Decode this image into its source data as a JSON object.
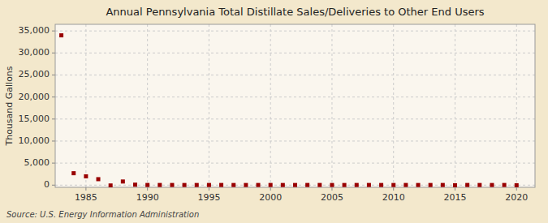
{
  "chart_data": {
    "type": "scatter",
    "title": "Annual Pennsylvania Total Distillate Sales/Deliveries to Other End Users",
    "ylabel": "Thousand Gallons",
    "source": "Source: U.S. Energy Information Administration",
    "color": "#990000",
    "marker": "square",
    "grid": true,
    "x": [
      1983,
      1984,
      1985,
      1986,
      1987,
      1988,
      1989,
      1990,
      1991,
      1992,
      1993,
      1994,
      1995,
      1996,
      1997,
      1998,
      1999,
      2000,
      2001,
      2002,
      2003,
      2004,
      2005,
      2006,
      2007,
      2008,
      2009,
      2010,
      2011,
      2012,
      2013,
      2014,
      2015,
      2016,
      2017,
      2018,
      2019,
      2020
    ],
    "values": [
      34000,
      2700,
      2000,
      1350,
      -80,
      820,
      100,
      30,
      30,
      30,
      25,
      25,
      30,
      30,
      25,
      25,
      30,
      30,
      25,
      25,
      30,
      30,
      25,
      25,
      30,
      30,
      25,
      25,
      30,
      25,
      25,
      30,
      -30,
      30,
      25,
      25,
      30,
      -30
    ],
    "xlim": [
      1982.5,
      2021.5
    ],
    "ylim": [
      -500,
      36500
    ],
    "xticks": [
      1985,
      1990,
      1995,
      2000,
      2005,
      2010,
      2015,
      2020
    ],
    "yticks": [
      0,
      {
        "value": 5000,
        "label": "5,000"
      },
      {
        "value": 10000,
        "label": "10,000"
      },
      {
        "value": 15000,
        "label": "15,000"
      },
      {
        "value": 20000,
        "label": "20,000"
      },
      {
        "value": 25000,
        "label": "25,000"
      },
      {
        "value": 30000,
        "label": "30,000"
      },
      {
        "value": 35000,
        "label": "35,000"
      }
    ]
  }
}
